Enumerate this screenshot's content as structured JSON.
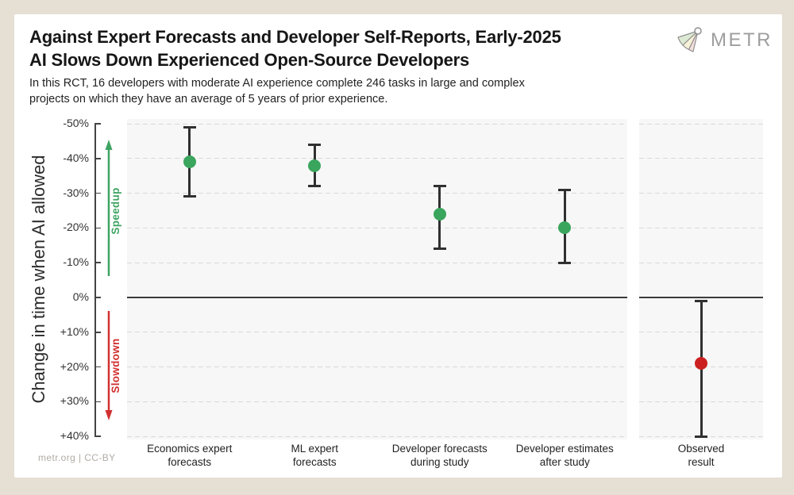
{
  "page": {
    "background": "#e6dfd4",
    "card_background": "#ffffff"
  },
  "header": {
    "title_line1": "Against Expert Forecasts and Developer Self-Reports, Early-2025",
    "title_line2": "AI Slows Down Experienced Open-Source Developers",
    "subtitle_line1": "In this RCT, 16 developers with moderate AI experience complete 246 tasks in large and complex",
    "subtitle_line2": "projects on which they have an average of 5 years of prior experience.",
    "logo_text": "METR"
  },
  "footer": {
    "attribution": "metr.org | CC-BY"
  },
  "chart_data": {
    "type": "scatter",
    "title": "Against Expert Forecasts and Developer Self-Reports, Early-2025 AI Slows Down Experienced Open-Source Developers",
    "subtitle": "In this RCT, 16 developers with moderate AI experience complete 246 tasks in large and complex projects on which they have an average of 5 years of prior experience.",
    "ylabel": "Change in time when AI allowed",
    "y_axis": {
      "unit": "%",
      "inverted": true,
      "min": -50,
      "max": 40,
      "ticks": [
        -50,
        -40,
        -30,
        -20,
        -10,
        0,
        10,
        20,
        30,
        40
      ],
      "tick_labels": [
        "-50%",
        "-40%",
        "-30%",
        "-20%",
        "-10%",
        "0%",
        "+10%",
        "+20%",
        "+30%",
        "+40%"
      ]
    },
    "grid": {
      "horizontal": "dashed",
      "zero_line": "solid"
    },
    "annotations": {
      "speedup": {
        "label": "Speedup",
        "color": "#3fa463",
        "direction": "up"
      },
      "slowdown": {
        "label": "Slowdown",
        "color": "#d23030",
        "direction": "down"
      }
    },
    "error_bar_color": "#303030",
    "series": [
      {
        "name": "Forecasts",
        "panel": "left",
        "color": "#3aa55d",
        "marker": "circle",
        "points": [
          {
            "category": "Economics expert\nforecasts",
            "value": -39,
            "ci": [
              -49,
              -29
            ]
          },
          {
            "category": "ML expert\nforecasts",
            "value": -38,
            "ci": [
              -44,
              -32
            ]
          },
          {
            "category": "Developer forecasts\nduring study",
            "value": -24,
            "ci": [
              -32,
              -14
            ]
          },
          {
            "category": "Developer estimates\nafter study",
            "value": -20,
            "ci": [
              -31,
              -10
            ]
          }
        ]
      },
      {
        "name": "Observed",
        "panel": "right",
        "color": "#cc2020",
        "marker": "circle",
        "points": [
          {
            "category": "Observed\nresult",
            "value": 19,
            "ci": [
              1,
              40
            ]
          }
        ]
      }
    ]
  }
}
